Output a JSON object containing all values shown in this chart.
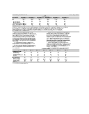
{
  "bg_color": "#ffffff",
  "page_header_left": "US 2015/0211711 A1",
  "page_header_right": "Dec. 06, 2015",
  "page_number": "11",
  "text_color": "#000000",
  "line_color": "#000000",
  "font_tiny": 1.4,
  "font_small": 1.6,
  "font_med": 1.8,
  "table5_title": "TABLE 5",
  "table5_headers": [
    "Property",
    "Example 1",
    "Example 2",
    "Example 3",
    "Example 4",
    "Example 5",
    "Example 6"
  ],
  "table5_rows": [
    [
      "Df",
      "0.002",
      "0.003",
      "0.003",
      "0.003",
      "0.004",
      "0.004"
    ],
    [
      "Dk",
      "3.1",
      "3.2",
      "3.1",
      "3.2",
      "3.3",
      "3.2"
    ],
    [
      "T288 (min)",
      "2.1",
      "2.1",
      "2.3",
      "2.1",
      "2.4",
      "2.3"
    ],
    [
      "T300 (min)",
      "1.2",
      "1.1",
      "1.3",
      "1.1",
      "1.3",
      "1.2"
    ],
    [
      "Tg (DSC) (C)",
      "175",
      "178",
      "180",
      "179",
      "183",
      "181"
    ],
    [
      "CTE z-axis below Tg",
      "2.1",
      "2.1",
      "2.0",
      "2.1",
      "2.0",
      "2.1"
    ],
    [
      "Peel Strength (lb/in)",
      "3.8",
      "3.9",
      "3.9",
      "3.9",
      "4.0",
      "4.0"
    ],
    [
      "Flammability",
      "V-0",
      "V-0",
      "V-0",
      "V-0",
      "V-0",
      "V-0"
    ]
  ],
  "note_lines_left": [
    "TABLE 5. Dielectric properties were measured from thin laminate substrates using the following",
    "measurement conditions: resonant cavity method at 10 GHz for Df and Dk measurements.",
    "T288 and T300 are times in minutes at 288C and 300C respectively in TMA testing. Tg",
    "was measured by DSC. CTE is coefficient of thermal expansion in ppm/C. Peel strength",
    "measured on 1 oz copper foil."
  ],
  "table6_title": "TABLE 6",
  "table6_headers": [
    "",
    "Ex. 1",
    "Ex. 2",
    "Ex. 3",
    "Ex. 4",
    "Ex. 5",
    "Ex. 6",
    "Ex. 7"
  ],
  "table6_comp_label": "Composition:",
  "table6_comp_rows": [
    [
      "  Epoxy resin",
      "100",
      "100",
      "100",
      "100",
      "100",
      "100",
      "100"
    ],
    [
      "  Hardener",
      "30",
      "30",
      "30",
      "30",
      "30",
      "30",
      "30"
    ],
    [
      "  Accelerator",
      "0.5",
      "0.5",
      "0.5",
      "0.5",
      "0.5",
      "0.5",
      "0.5"
    ],
    [
      "  Flame retardant",
      "15",
      "15",
      "15",
      "15",
      "15",
      "15",
      "15"
    ],
    [
      "  Filler",
      "—",
      "5",
      "10",
      "15",
      "—",
      "5",
      "10"
    ]
  ],
  "table6_prop_label": "Properties:",
  "table6_prop_rows": [
    [
      "  Dk (10 GHz)",
      "3.9",
      "3.8",
      "3.7",
      "3.6",
      "3.8",
      "3.7",
      "3.6"
    ],
    [
      "  Df (10 GHz)",
      "0.004",
      "0.003",
      "0.003",
      "0.003",
      "0.003",
      "0.003",
      "0.002"
    ],
    [
      "  T288 (min)",
      ">10",
      ">10",
      ">10",
      ">10",
      ">10",
      ">10",
      ">10"
    ],
    [
      "  Tg (C)",
      "180",
      "180",
      "179",
      "178",
      "181",
      "180",
      "179"
    ],
    [
      "  Peel (lb/in)",
      "4.0",
      "4.1",
      "4.0",
      "4.0",
      "4.1",
      "4.1",
      "4.0"
    ]
  ],
  "left_col_lines": [
    "    0097  Although any cooling resin",
    "composition herein above can be utilized",
    "to form the dielectric layer, in a preferred",
    "embodiment the resin composition dis-",
    "closed herein can be utilized in a glass",
    "reinforced laminate that can be used to",
    "form a multi layer printed wiring board.",
    "For example, in a preferred embodiment",
    "the laminate composition can be further",
    "described as a glass reinforced laminate",
    "comprising:",
    "    (a) a thermoset resin composition",
    "comprising 30% or more thermosetting",
    "monomers or prepolymers; and",
    "    (b) a fiberglass woven or non woven",
    "fabric reinforcing material comprising an",
    "amount from 40% to 80% by weight of",
    "the laminate."
  ],
  "right_col_lines": [
    "    0098  Although any resin composition",
    "herein above can be utilized to form the",
    "dielectric layer, in a preferred embodi-",
    "ment the resin composition disclosed",
    "herein can be utilized in a glass reinforced",
    "laminate that can be used to form a multi",
    "layer printed wiring board. The specific",
    "embodiment disclosed herein can satisfy",
    "the requirements of multiple applications,",
    "and has the characteristics and key ele-",
    "ments that can be outlined herein.",
    "    0099  The thermoset resin composi-",
    "tion can include a curable thermoset resin",
    "component that, after cure, can provide a",
    "dielectric property of a dissipation factor",
    "(Df) of less than 0.005 at frequencies",
    "from 1 to 10 GHz.",
    "    0100  The dielectric layer described",
    "herein can satisfy the requirements of"
  ]
}
